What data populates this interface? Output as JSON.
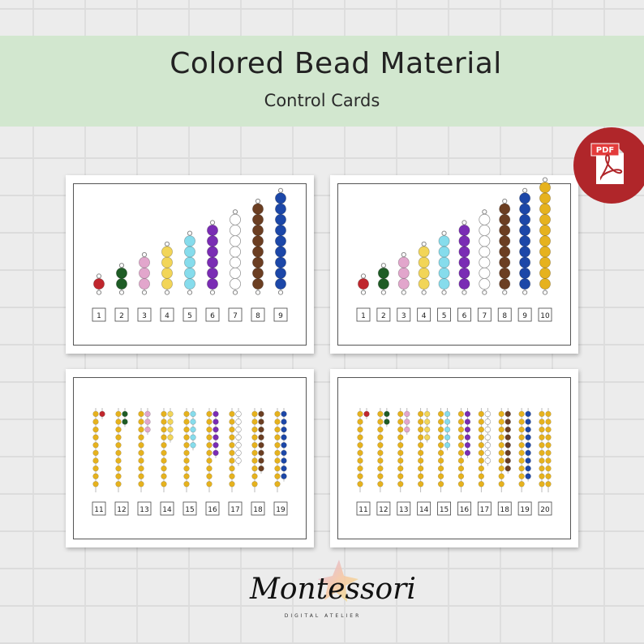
{
  "header": {
    "title": "Colored Bead Material",
    "subtitle": "Control Cards"
  },
  "pdf_badge": {
    "label": "PDF",
    "icon": "pdf-file-icon",
    "color": "#b0262a"
  },
  "logo": {
    "word": "Montessori",
    "sub": "DIGITAL ATELIER"
  },
  "bead_colors": {
    "1": "#c0262d",
    "2": "#1e5c25",
    "3": "#e2a6cc",
    "4": "#f2d558",
    "5": "#86dcec",
    "6": "#7a2cb4",
    "7": "#ffffff",
    "8": "#6b3e22",
    "9": "#1c47a8",
    "10": "#e6b21e"
  },
  "cards": [
    {
      "name": "card-beads-1-9",
      "type": "stair",
      "labels": [
        "1",
        "2",
        "3",
        "4",
        "5",
        "6",
        "7",
        "8",
        "9"
      ]
    },
    {
      "name": "card-beads-1-10",
      "type": "stair",
      "labels": [
        "1",
        "2",
        "3",
        "4",
        "5",
        "6",
        "7",
        "8",
        "9",
        "10"
      ]
    },
    {
      "name": "card-beads-11-19",
      "type": "teen",
      "labels": [
        "11",
        "12",
        "13",
        "14",
        "15",
        "16",
        "17",
        "18",
        "19"
      ]
    },
    {
      "name": "card-beads-11-20",
      "type": "teen",
      "labels": [
        "11",
        "12",
        "13",
        "14",
        "15",
        "16",
        "17",
        "18",
        "19",
        "20"
      ]
    }
  ]
}
